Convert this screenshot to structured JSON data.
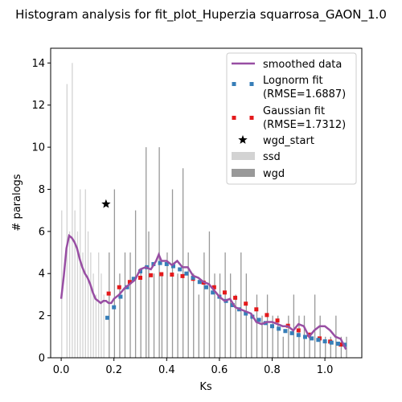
{
  "chart_data": {
    "type": "histogram",
    "title": "Histogram analysis for fit_plot_Huperzia squarrosa_GAON_1.0",
    "xlabel": "Ks",
    "ylabel": "# paralogs",
    "xlim": [
      -0.04,
      1.14
    ],
    "ylim": [
      0,
      14.7
    ],
    "xticks": [
      "0.0",
      "0.2",
      "0.4",
      "0.6",
      "0.8",
      "1.0"
    ],
    "yticks": [
      "0",
      "2",
      "4",
      "6",
      "8",
      "10",
      "12",
      "14"
    ],
    "grid": false,
    "legend_position": "top-right",
    "legend": {
      "smoothed": "smoothed data",
      "lognorm_title": "Lognorm fit",
      "lognorm_rmse": "(RMSE=1.6887)",
      "gaussian_title": "Gaussian fit",
      "gaussian_rmse": "(RMSE=1.7312)",
      "wgd_start": "wgd_start",
      "ssd": "ssd",
      "wgd": "wgd"
    },
    "colors": {
      "smoothed": "#984ea3",
      "lognorm": "#377eb8",
      "gaussian": "#e41a1c",
      "ssd": "#d3d3d3",
      "wgd": "#999999",
      "wgd_start": "#000000"
    },
    "ssd_bars": {
      "x": [
        0.0,
        0.02,
        0.03,
        0.04,
        0.05,
        0.06,
        0.07,
        0.08,
        0.09,
        0.1,
        0.11,
        0.12,
        0.13,
        0.14,
        0.15,
        0.16
      ],
      "y": [
        7,
        13,
        6,
        14,
        7,
        6,
        8,
        5,
        8,
        6,
        5,
        4,
        3,
        5,
        4,
        3
      ]
    },
    "wgd_bars": {
      "x": [
        0.18,
        0.2,
        0.22,
        0.24,
        0.26,
        0.28,
        0.3,
        0.32,
        0.33,
        0.35,
        0.37,
        0.38,
        0.4,
        0.42,
        0.44,
        0.46,
        0.48,
        0.5,
        0.52,
        0.54,
        0.56,
        0.58,
        0.6,
        0.62,
        0.64,
        0.66,
        0.68,
        0.7,
        0.72,
        0.74,
        0.76,
        0.78,
        0.8,
        0.82,
        0.84,
        0.86,
        0.88,
        0.9,
        0.92,
        0.94,
        0.96,
        0.98,
        1.0,
        1.02,
        1.04,
        1.06,
        1.08
      ],
      "y": [
        5,
        8,
        4,
        5,
        5,
        7,
        4,
        10,
        6,
        4,
        10,
        4,
        5,
        8,
        4,
        9,
        5,
        4,
        3,
        5,
        6,
        4,
        4,
        5,
        4,
        3,
        5,
        4,
        2,
        3,
        2,
        3,
        2,
        2,
        1,
        2,
        3,
        2,
        2,
        1,
        3,
        2,
        1,
        1,
        2,
        1,
        1
      ]
    },
    "smoothed": {
      "x": [
        0.0,
        0.01,
        0.02,
        0.03,
        0.04,
        0.05,
        0.06,
        0.07,
        0.08,
        0.09,
        0.1,
        0.11,
        0.12,
        0.13,
        0.14,
        0.15,
        0.16,
        0.17,
        0.18,
        0.19,
        0.2,
        0.22,
        0.24,
        0.26,
        0.28,
        0.3,
        0.32,
        0.34,
        0.36,
        0.37,
        0.38,
        0.4,
        0.42,
        0.44,
        0.46,
        0.48,
        0.5,
        0.52,
        0.54,
        0.56,
        0.58,
        0.6,
        0.62,
        0.64,
        0.66,
        0.68,
        0.7,
        0.72,
        0.74,
        0.76,
        0.78,
        0.8,
        0.82,
        0.84,
        0.86,
        0.88,
        0.9,
        0.92,
        0.94,
        0.96,
        0.98,
        1.0,
        1.02,
        1.04,
        1.06,
        1.08
      ],
      "y": [
        2.8,
        3.9,
        5.2,
        5.8,
        5.7,
        5.5,
        5.2,
        4.7,
        4.3,
        4.0,
        3.8,
        3.5,
        3.1,
        2.8,
        2.7,
        2.6,
        2.7,
        2.7,
        2.6,
        2.6,
        2.8,
        3.0,
        3.3,
        3.5,
        3.7,
        4.2,
        4.3,
        4.2,
        4.6,
        4.9,
        4.6,
        4.6,
        4.4,
        4.6,
        4.3,
        4.3,
        3.9,
        3.8,
        3.6,
        3.5,
        3.2,
        2.9,
        2.7,
        2.8,
        2.4,
        2.3,
        2.2,
        2.1,
        1.7,
        1.6,
        1.7,
        1.7,
        1.6,
        1.5,
        1.5,
        1.3,
        1.6,
        1.5,
        1.0,
        1.3,
        1.5,
        1.5,
        1.3,
        1.0,
        0.9,
        0.4
      ]
    },
    "lognorm": {
      "x": [
        0.175,
        0.2,
        0.225,
        0.25,
        0.275,
        0.3,
        0.325,
        0.35,
        0.375,
        0.4,
        0.425,
        0.45,
        0.475,
        0.5,
        0.525,
        0.55,
        0.575,
        0.6,
        0.625,
        0.65,
        0.675,
        0.7,
        0.725,
        0.75,
        0.775,
        0.8,
        0.825,
        0.85,
        0.875,
        0.9,
        0.925,
        0.95,
        0.975,
        1.0,
        1.025,
        1.05,
        1.075
      ],
      "y": [
        1.9,
        2.4,
        2.9,
        3.35,
        3.75,
        4.1,
        4.3,
        4.45,
        4.5,
        4.45,
        4.35,
        4.2,
        4.0,
        3.8,
        3.6,
        3.35,
        3.1,
        2.9,
        2.7,
        2.5,
        2.3,
        2.1,
        1.95,
        1.8,
        1.65,
        1.5,
        1.38,
        1.27,
        1.17,
        1.08,
        0.99,
        0.92,
        0.85,
        0.78,
        0.72,
        0.67,
        0.62
      ]
    },
    "gaussian": {
      "x": [
        0.18,
        0.22,
        0.26,
        0.3,
        0.34,
        0.38,
        0.42,
        0.46,
        0.5,
        0.54,
        0.58,
        0.62,
        0.66,
        0.7,
        0.74,
        0.78,
        0.82,
        0.86,
        0.9,
        0.94,
        0.98,
        1.02,
        1.06
      ],
      "y": [
        3.05,
        3.35,
        3.6,
        3.8,
        3.92,
        3.97,
        3.95,
        3.88,
        3.75,
        3.57,
        3.35,
        3.1,
        2.85,
        2.57,
        2.3,
        2.03,
        1.77,
        1.52,
        1.3,
        1.1,
        0.92,
        0.77,
        0.63
      ]
    },
    "wgd_start": {
      "x": 0.17,
      "y": 7.3
    }
  }
}
